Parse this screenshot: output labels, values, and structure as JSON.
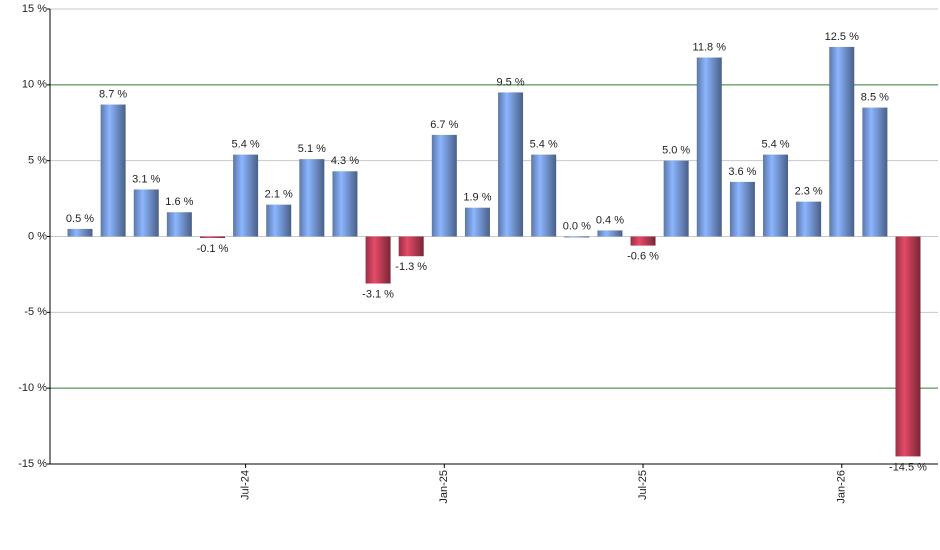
{
  "chart_data": {
    "type": "bar",
    "categories": [
      null,
      null,
      null,
      null,
      null,
      "Jul-24",
      null,
      null,
      null,
      null,
      null,
      "Jan-25",
      null,
      null,
      null,
      null,
      null,
      "Jul-25",
      null,
      null,
      null,
      null,
      null,
      "Jan-26",
      null,
      null
    ],
    "values": [
      0.5,
      8.7,
      3.1,
      1.6,
      -0.1,
      5.4,
      2.1,
      5.1,
      4.3,
      -3.1,
      -1.3,
      6.7,
      1.9,
      9.5,
      5.4,
      0.0,
      0.4,
      -0.6,
      5.0,
      11.8,
      3.6,
      5.4,
      2.3,
      12.5,
      8.5,
      -14.5
    ],
    "value_labels": [
      "0.5 %",
      "8.7 %",
      "3.1 %",
      "1.6 %",
      "-0.1 %",
      "5.4 %",
      "2.1 %",
      "5.1 %",
      "4.3 %",
      "-3.1 %",
      "-1.3 %",
      "6.7 %",
      "1.9 %",
      "9.5 %",
      "5.4 %",
      "0.0 %",
      "0.4 %",
      "-0.6 %",
      "5.0 %",
      "11.8 %",
      "3.6 %",
      "5.4 %",
      "2.3 %",
      "12.5 %",
      "8.5 %",
      "-14.5 %"
    ],
    "color": "#7a9ee0",
    "negative_color": "#c8405a",
    "ylim": [
      -15,
      15
    ],
    "yticks": [
      {
        "value": -15,
        "label": "-15 %"
      },
      {
        "value": -10,
        "label": "-10 %"
      },
      {
        "value": -5,
        "label": "-5 %"
      },
      {
        "value": 0,
        "label": "0 %"
      },
      {
        "value": 5,
        "label": "5 %"
      },
      {
        "value": 10,
        "label": "10 %"
      },
      {
        "value": 15,
        "label": "15 %"
      }
    ],
    "grid": true,
    "grid_colors": [
      "#c8c8c8",
      "#2e7d32",
      "#c8c8c8",
      "#c8c8c8",
      "#c8c8c8",
      "#2e7d32",
      "#c8c8c8"
    ]
  }
}
